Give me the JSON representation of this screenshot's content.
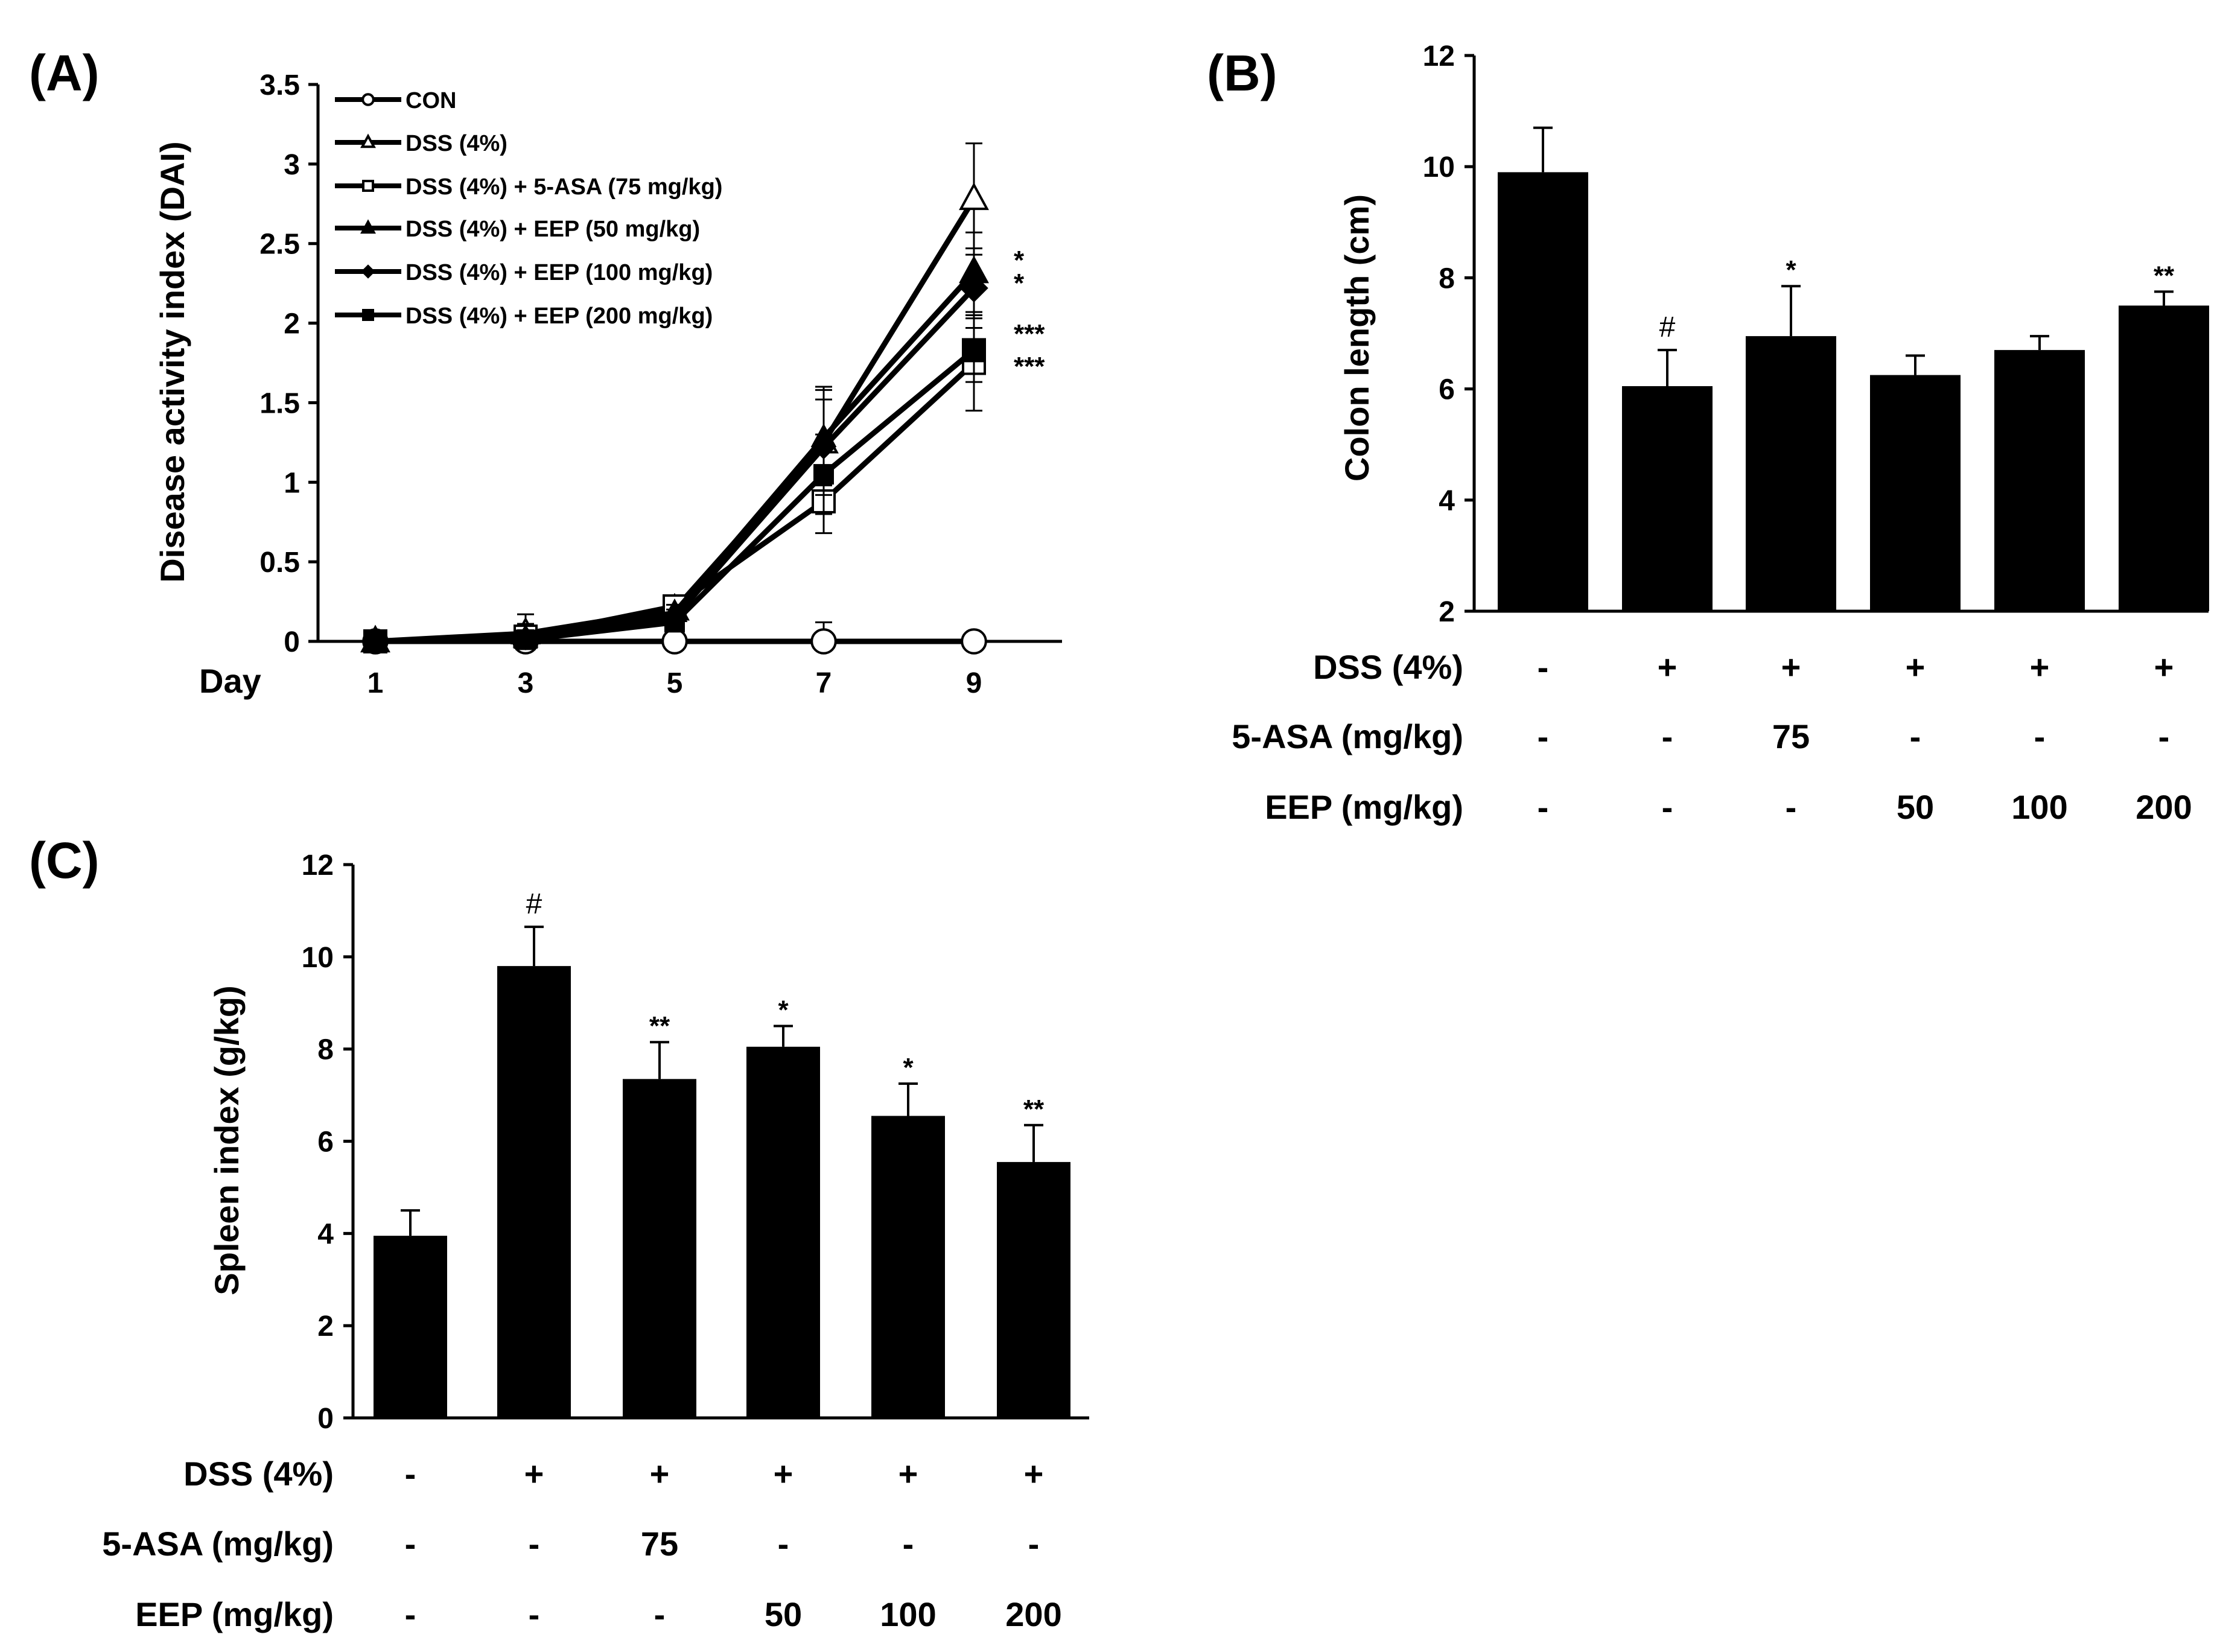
{
  "chart_data": [
    {
      "panel": "(A)",
      "type": "line",
      "ylabel": "Disease activity index (DAI)",
      "xlabel": "Day",
      "ylim": [
        0,
        3.5
      ],
      "yticks": [
        "0",
        "0.5",
        "1",
        "1.5",
        "2",
        "2.5",
        "3",
        "3.5"
      ],
      "x": [
        1,
        3,
        5,
        7,
        9
      ],
      "xticks": [
        "1",
        "3",
        "5",
        "7",
        "9"
      ],
      "legend_position": "top-left",
      "series": [
        {
          "name": "CON",
          "marker": "circle-open",
          "values": [
            0,
            0,
            0,
            0,
            0
          ],
          "errors": [
            0,
            0,
            0,
            0.12,
            0
          ],
          "sig": ""
        },
        {
          "name": "DSS (4%)",
          "marker": "triangle-open",
          "values": [
            0,
            0.05,
            0.2,
            1.25,
            2.78
          ],
          "errors": [
            0,
            0.12,
            0.05,
            0.35,
            0.35
          ],
          "sig": ""
        },
        {
          "name": "DSS (4%) + 5-ASA (75 mg/kg)",
          "marker": "square-open",
          "values": [
            0,
            0.03,
            0.22,
            0.88,
            1.75
          ],
          "errors": [
            0,
            0.08,
            0.05,
            0.2,
            0.3
          ],
          "sig": "***"
        },
        {
          "name": "DSS (4%) + EEP (50 mg/kg)",
          "marker": "triangle-filled",
          "values": [
            0,
            0.02,
            0.18,
            1.28,
            2.32
          ],
          "errors": [
            0,
            0.05,
            0.05,
            0.3,
            0.25
          ],
          "sig": "*"
        },
        {
          "name": "DSS (4%) + EEP (100 mg/kg)",
          "marker": "diamond-filled",
          "values": [
            0,
            0.02,
            0.15,
            1.22,
            2.22
          ],
          "errors": [
            0,
            0.05,
            0.05,
            0.3,
            0.25
          ],
          "sig": "*"
        },
        {
          "name": "DSS (4%) + EEP (200 mg/kg)",
          "marker": "square-filled",
          "values": [
            0,
            0.01,
            0.12,
            1.05,
            1.83
          ],
          "errors": [
            0,
            0.05,
            0.05,
            0.25,
            0.2
          ],
          "sig": "***"
        }
      ]
    },
    {
      "panel": "(B)",
      "type": "bar",
      "ylabel": "Colon length (cm)",
      "ylim": [
        2,
        12
      ],
      "yticks": [
        "2",
        "4",
        "6",
        "8",
        "10",
        "12"
      ],
      "values": [
        9.9,
        6.05,
        6.95,
        6.25,
        6.7,
        7.5
      ],
      "errors": [
        0.8,
        0.65,
        0.9,
        0.35,
        0.25,
        0.25
      ],
      "sig": [
        "",
        "#",
        "*",
        "",
        "",
        "**"
      ],
      "condition_rows": [
        {
          "label": "DSS (4%)",
          "cells": [
            "-",
            "+",
            "+",
            "+",
            "+",
            "+"
          ]
        },
        {
          "label": "5-ASA (mg/kg)",
          "cells": [
            "-",
            "-",
            "75",
            "-",
            "-",
            "-"
          ]
        },
        {
          "label": "EEP (mg/kg)",
          "cells": [
            "-",
            "-",
            "-",
            "50",
            "100",
            "200"
          ]
        }
      ]
    },
    {
      "panel": "(C)",
      "type": "bar",
      "ylabel": "Spleen index (g/kg)",
      "ylim": [
        0,
        12
      ],
      "yticks": [
        "0",
        "2",
        "4",
        "6",
        "8",
        "10",
        "12"
      ],
      "values": [
        3.95,
        9.8,
        7.35,
        8.05,
        6.55,
        5.55
      ],
      "errors": [
        0.55,
        0.85,
        0.8,
        0.45,
        0.7,
        0.8
      ],
      "sig": [
        "",
        "#",
        "**",
        "*",
        "*",
        "**"
      ],
      "condition_rows": [
        {
          "label": "DSS (4%)",
          "cells": [
            "-",
            "+",
            "+",
            "+",
            "+",
            "+"
          ]
        },
        {
          "label": "5-ASA (mg/kg)",
          "cells": [
            "-",
            "-",
            "75",
            "-",
            "-",
            "-"
          ]
        },
        {
          "label": "EEP (mg/kg)",
          "cells": [
            "-",
            "-",
            "-",
            "50",
            "100",
            "200"
          ]
        }
      ]
    }
  ]
}
